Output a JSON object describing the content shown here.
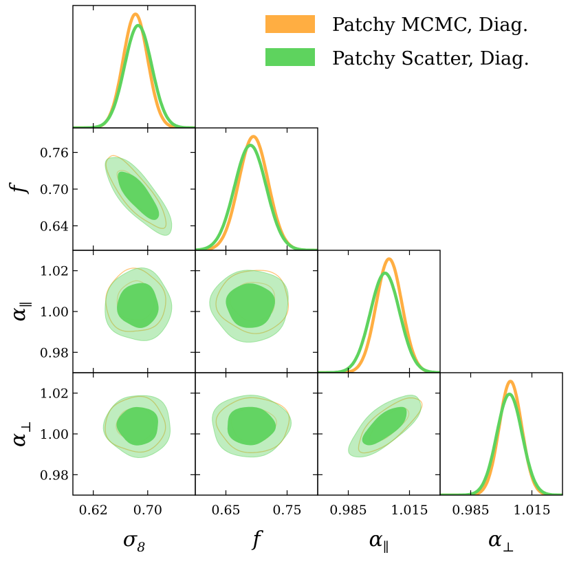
{
  "chart_data": {
    "type": "corner",
    "parameters": [
      {
        "key": "s8",
        "symbol": "σ",
        "subscript": "8"
      },
      {
        "key": "f",
        "symbol": "f",
        "subscript": ""
      },
      {
        "key": "apar",
        "symbol": "α",
        "subscript": "∥"
      },
      {
        "key": "aperp",
        "symbol": "α",
        "subscript": "⊥"
      }
    ],
    "ranges": {
      "s8": [
        0.59,
        0.77
      ],
      "f": [
        0.6,
        0.8
      ],
      "apar": [
        0.97,
        1.03
      ],
      "aperp": [
        0.97,
        1.03
      ]
    },
    "x_ticks": {
      "s8": [
        0.62,
        0.7
      ],
      "f": [
        0.65,
        0.75
      ],
      "apar": [
        0.985,
        1.015
      ],
      "aperp": [
        0.985,
        1.015
      ]
    },
    "x_tick_labels": {
      "s8": [
        "0.62",
        "0.70"
      ],
      "f": [
        "0.65",
        "0.75"
      ],
      "apar": [
        "0.985",
        "1.015"
      ],
      "aperp": [
        "0.985",
        "1.015"
      ]
    },
    "y_ticks": {
      "f": [
        0.64,
        0.7,
        0.76
      ],
      "apar": [
        0.98,
        1.0,
        1.02
      ],
      "aperp": [
        0.98,
        1.0,
        1.02
      ]
    },
    "y_tick_labels": {
      "f": [
        "0.64",
        "0.70",
        "0.76"
      ],
      "apar": [
        "0.98",
        "1.00",
        "1.02"
      ],
      "aperp": [
        "0.98",
        "1.00",
        "1.02"
      ]
    },
    "series": [
      {
        "name": "Patchy MCMC, Diag.",
        "color": "#ffae42",
        "contour_style": "outline",
        "mean": {
          "s8": 0.682,
          "f": 0.695,
          "apar": 1.005,
          "aperp": 1.0045
        },
        "sigma": {
          "s8": 0.018,
          "f": 0.024,
          "apar": 0.0063,
          "aperp": 0.0055
        },
        "correlation": {
          "s8|f": -0.82,
          "s8|apar": 0.0,
          "s8|aperp": 0.0,
          "f|apar": 0.0,
          "f|aperp": 0.0,
          "apar|aperp": 0.75
        }
      },
      {
        "name": "Patchy Scatter, Diag.",
        "color": "#5ed35e",
        "contour_style": "filled",
        "mean": {
          "s8": 0.686,
          "f": 0.69,
          "apar": 1.003,
          "aperp": 1.004
        },
        "sigma": {
          "s8": 0.02,
          "f": 0.026,
          "apar": 0.0072,
          "aperp": 0.0062
        },
        "correlation": {
          "s8|f": -0.78,
          "s8|apar": 0.0,
          "s8|aperp": 0.0,
          "f|apar": 0.0,
          "f|aperp": 0.0,
          "apar|aperp": 0.72
        }
      }
    ],
    "contour_levels": [
      "68%",
      "95%"
    ],
    "legend_position": "top-right",
    "grid": false
  }
}
